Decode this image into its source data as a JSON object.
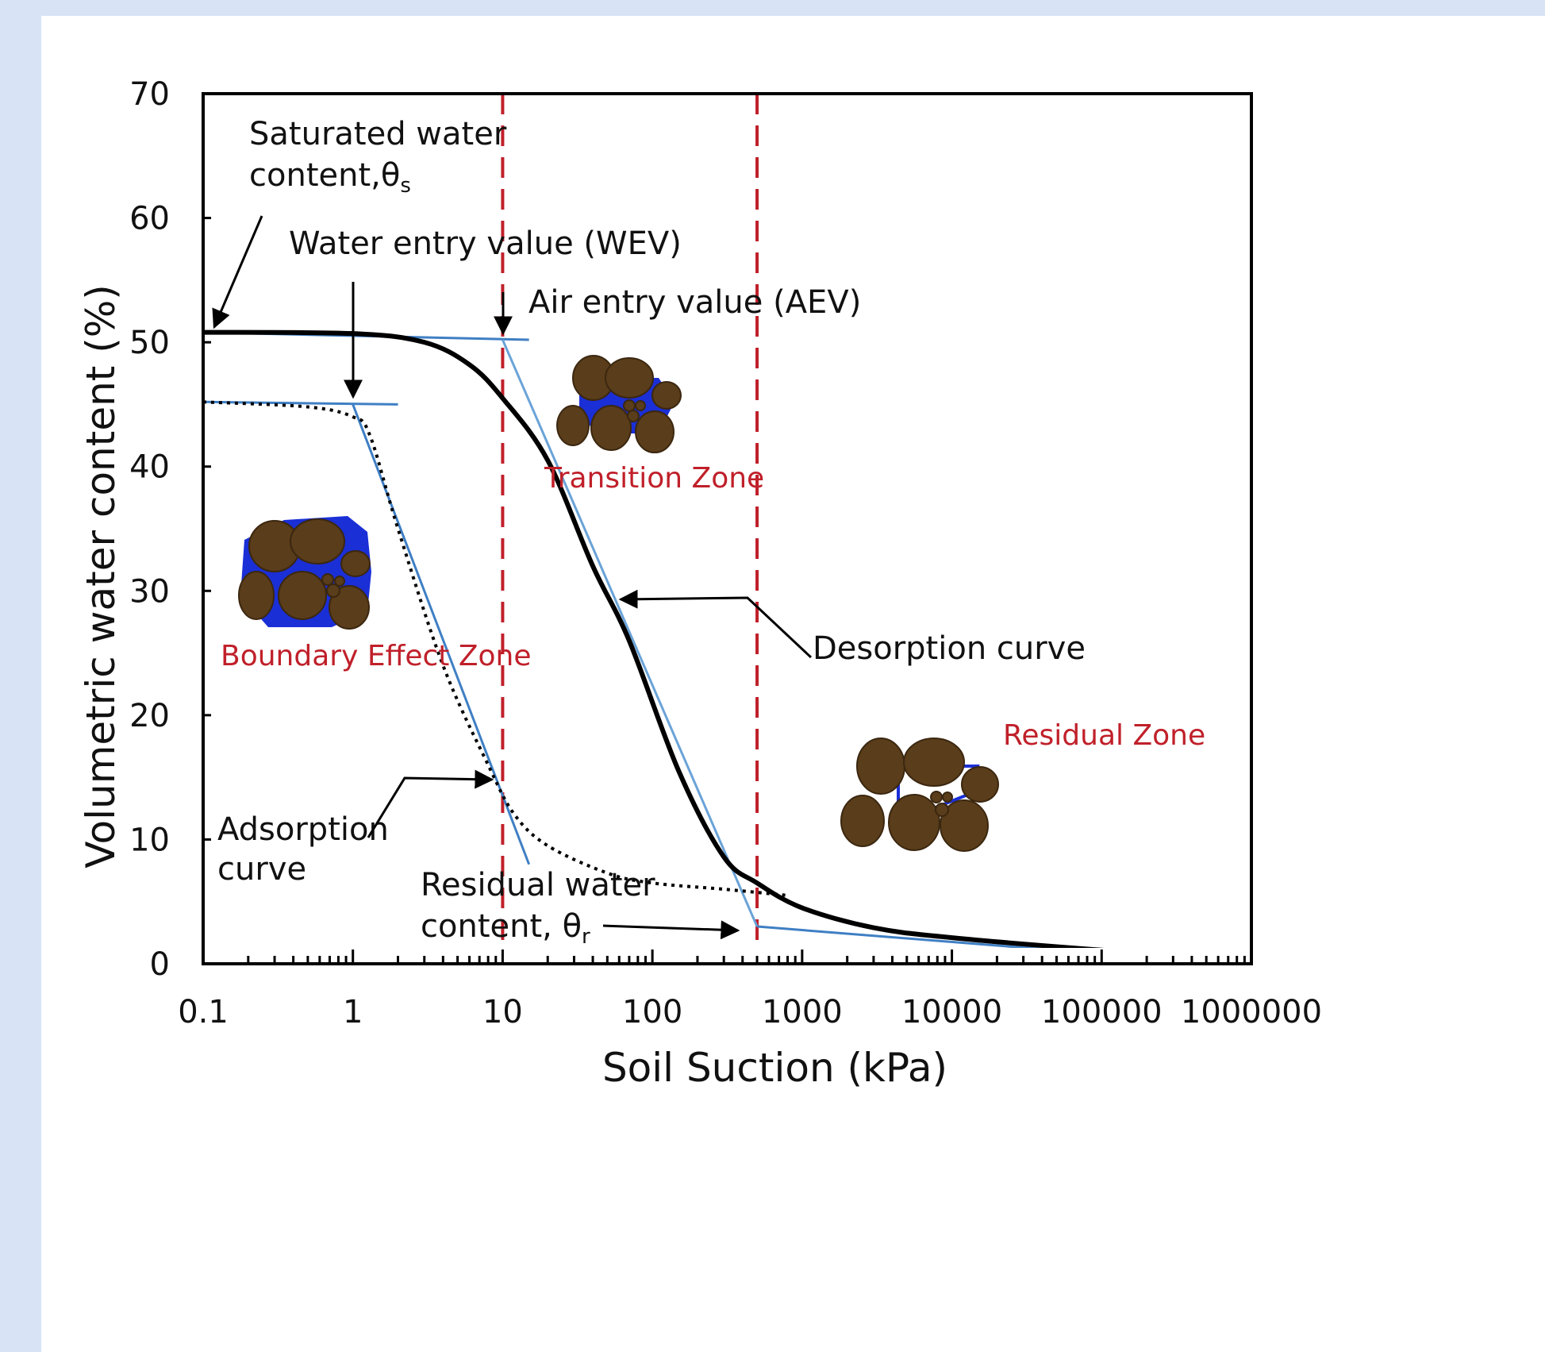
{
  "chart_data": {
    "type": "line",
    "xlabel": "Soil Suction (kPa)",
    "ylabel": "Volumetric water content (%)",
    "x_scale": "log",
    "xlim": [
      0.1,
      1000000
    ],
    "ylim": [
      0,
      70
    ],
    "x_tick_labels": [
      "0.1",
      "1",
      "10",
      "100",
      "1000",
      "10000",
      "100000",
      "1000000"
    ],
    "x_tick_values": [
      0.1,
      1,
      10,
      100,
      1000,
      10000,
      100000,
      1000000
    ],
    "y_tick_labels": [
      "0",
      "10",
      "20",
      "30",
      "40",
      "50",
      "60",
      "70"
    ],
    "y_tick_values": [
      0,
      10,
      20,
      30,
      40,
      50,
      60,
      70
    ],
    "grid": false,
    "series": [
      {
        "name": "Desorption curve",
        "style": "solid",
        "color": "#000000",
        "x": [
          0.1,
          1,
          3,
          6,
          10,
          20,
          40,
          70,
          150,
          300,
          500,
          1000,
          3000,
          10000,
          100000,
          1000000
        ],
        "y": [
          50.8,
          50.7,
          50.0,
          48.2,
          45.5,
          40.5,
          32.0,
          26.0,
          15.5,
          8.6,
          6.5,
          4.5,
          2.9,
          2.1,
          1.1,
          0.3
        ]
      },
      {
        "name": "Adsorption curve",
        "style": "dotted",
        "color": "#000000",
        "x": [
          0.1,
          0.5,
          1,
          1.3,
          2,
          4,
          8,
          12,
          20,
          50,
          100,
          300,
          800
        ],
        "y": [
          45.2,
          44.8,
          44.0,
          42.5,
          35.0,
          24.0,
          16.0,
          12.0,
          9.5,
          7.3,
          6.5,
          6.0,
          5.5
        ]
      }
    ],
    "tangent_lines": [
      {
        "x": [
          0.1,
          15
        ],
        "y": [
          50.8,
          50.2
        ],
        "color": "#3f7fc4"
      },
      {
        "x": [
          10,
          500
        ],
        "y": [
          50.2,
          3.0
        ],
        "color": "#6aa3d8"
      },
      {
        "x": [
          0.1,
          2
        ],
        "y": [
          45.2,
          45.0
        ],
        "color": "#3f7fc4"
      },
      {
        "x": [
          1,
          15
        ],
        "y": [
          45.0,
          8.0
        ],
        "color": "#3f7fc4"
      },
      {
        "x": [
          500,
          100000
        ],
        "y": [
          3.0,
          0.8
        ],
        "color": "#3f7fc4"
      }
    ],
    "zone_boundaries": {
      "x": [
        10,
        500
      ],
      "color": "#c0202a",
      "style": "dashed"
    },
    "zones": [
      {
        "name": "Boundary Effect Zone",
        "color": "#c0202a"
      },
      {
        "name": "Transition Zone",
        "color": "#c0202a"
      },
      {
        "name": "Residual Zone",
        "color": "#c0202a"
      }
    ],
    "annotations": {
      "saturated_1": "Saturated water",
      "saturated_2": "content,θ",
      "saturated_sub": "s",
      "wev": "Water entry value (WEV)",
      "aev": "Air entry value (AEV)",
      "desorption": "Desorption curve",
      "adsorption_1": "Adsorption",
      "adsorption_2": "curve",
      "residual_1": "Residual water",
      "residual_2": "content, θ",
      "residual_sub": "r"
    },
    "particle_colors": {
      "soil": "#5a3d1a",
      "water": "#1a2fd6",
      "soil_outline": "#3b2710"
    }
  }
}
